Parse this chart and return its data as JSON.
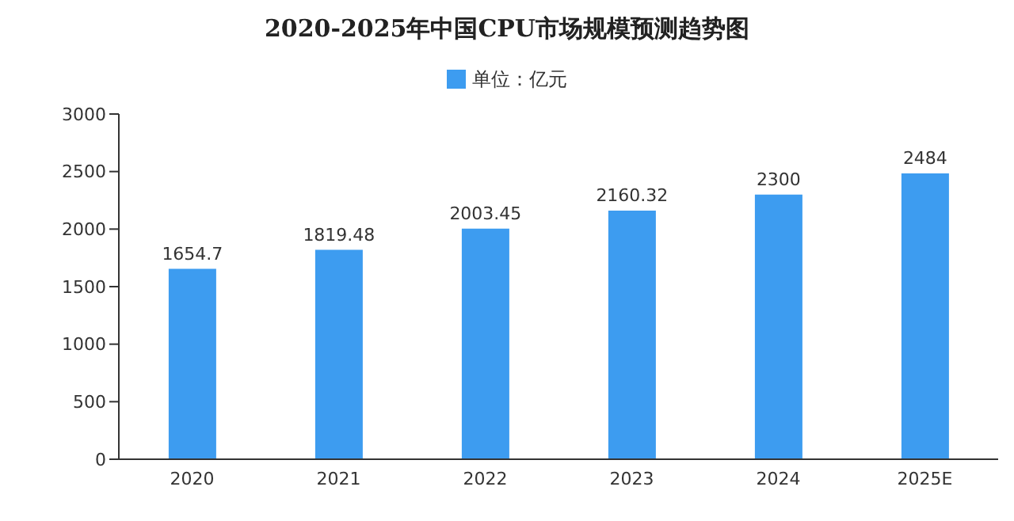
{
  "chart_data": {
    "type": "bar",
    "title": "2020-2025年中国CPU市场规模预测趋势图",
    "categories": [
      "2020",
      "2021",
      "2022",
      "2023",
      "2024",
      "2025E"
    ],
    "series": [
      {
        "name": "单位：亿元",
        "color": "#3d9cf0",
        "values": [
          1654.7,
          1819.48,
          2003.45,
          2160.32,
          2300,
          2484
        ]
      }
    ],
    "ylim": [
      0,
      3000
    ],
    "yticks": [
      0,
      500,
      1000,
      1500,
      2000,
      2500,
      3000
    ],
    "grid": false,
    "legend": "top",
    "data_labels": true
  }
}
